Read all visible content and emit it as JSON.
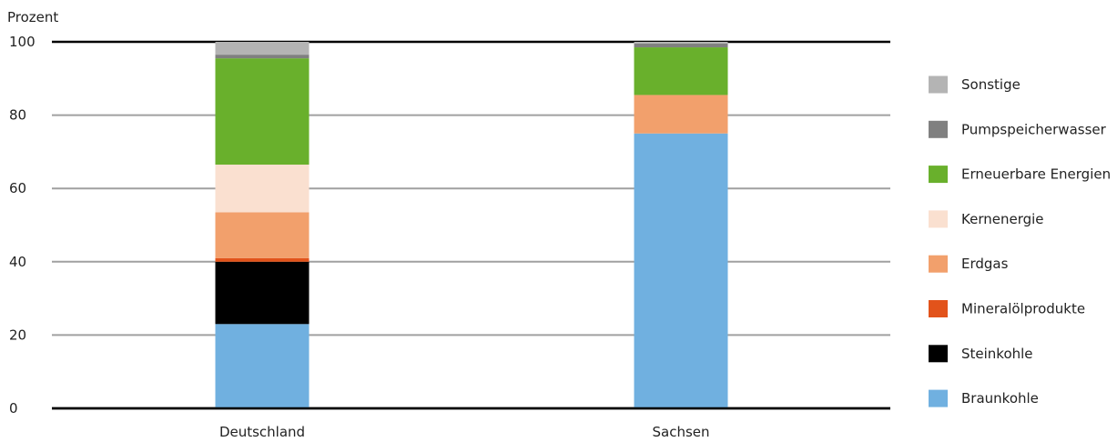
{
  "chart_data": {
    "type": "bar",
    "stacked": true,
    "ylabel": "Prozent",
    "ylim": [
      0,
      100
    ],
    "yticks": [
      0,
      20,
      40,
      60,
      80,
      100
    ],
    "grid": true,
    "legend_position": "right",
    "categories": [
      "Deutschland",
      "Sachsen"
    ],
    "series": [
      {
        "name": "Braunkohle",
        "color": "#70b0e0",
        "values": [
          23,
          75
        ]
      },
      {
        "name": "Steinkohle",
        "color": "#000000",
        "values": [
          17,
          0
        ]
      },
      {
        "name": "Mineralölprodukte",
        "color": "#e2531b",
        "values": [
          1,
          0
        ]
      },
      {
        "name": "Erdgas",
        "color": "#f2a06c",
        "values": [
          12.5,
          10.5
        ]
      },
      {
        "name": "Kernenergie",
        "color": "#fae0d0",
        "values": [
          13,
          0
        ]
      },
      {
        "name": "Erneuerbare Energien",
        "color": "#69b02c",
        "values": [
          29,
          13
        ]
      },
      {
        "name": "Pumpspeicherwasser",
        "color": "#808080",
        "values": [
          1,
          1
        ]
      },
      {
        "name": "Sonstige",
        "color": "#b4b4b4",
        "values": [
          3.5,
          0.5
        ]
      }
    ]
  }
}
